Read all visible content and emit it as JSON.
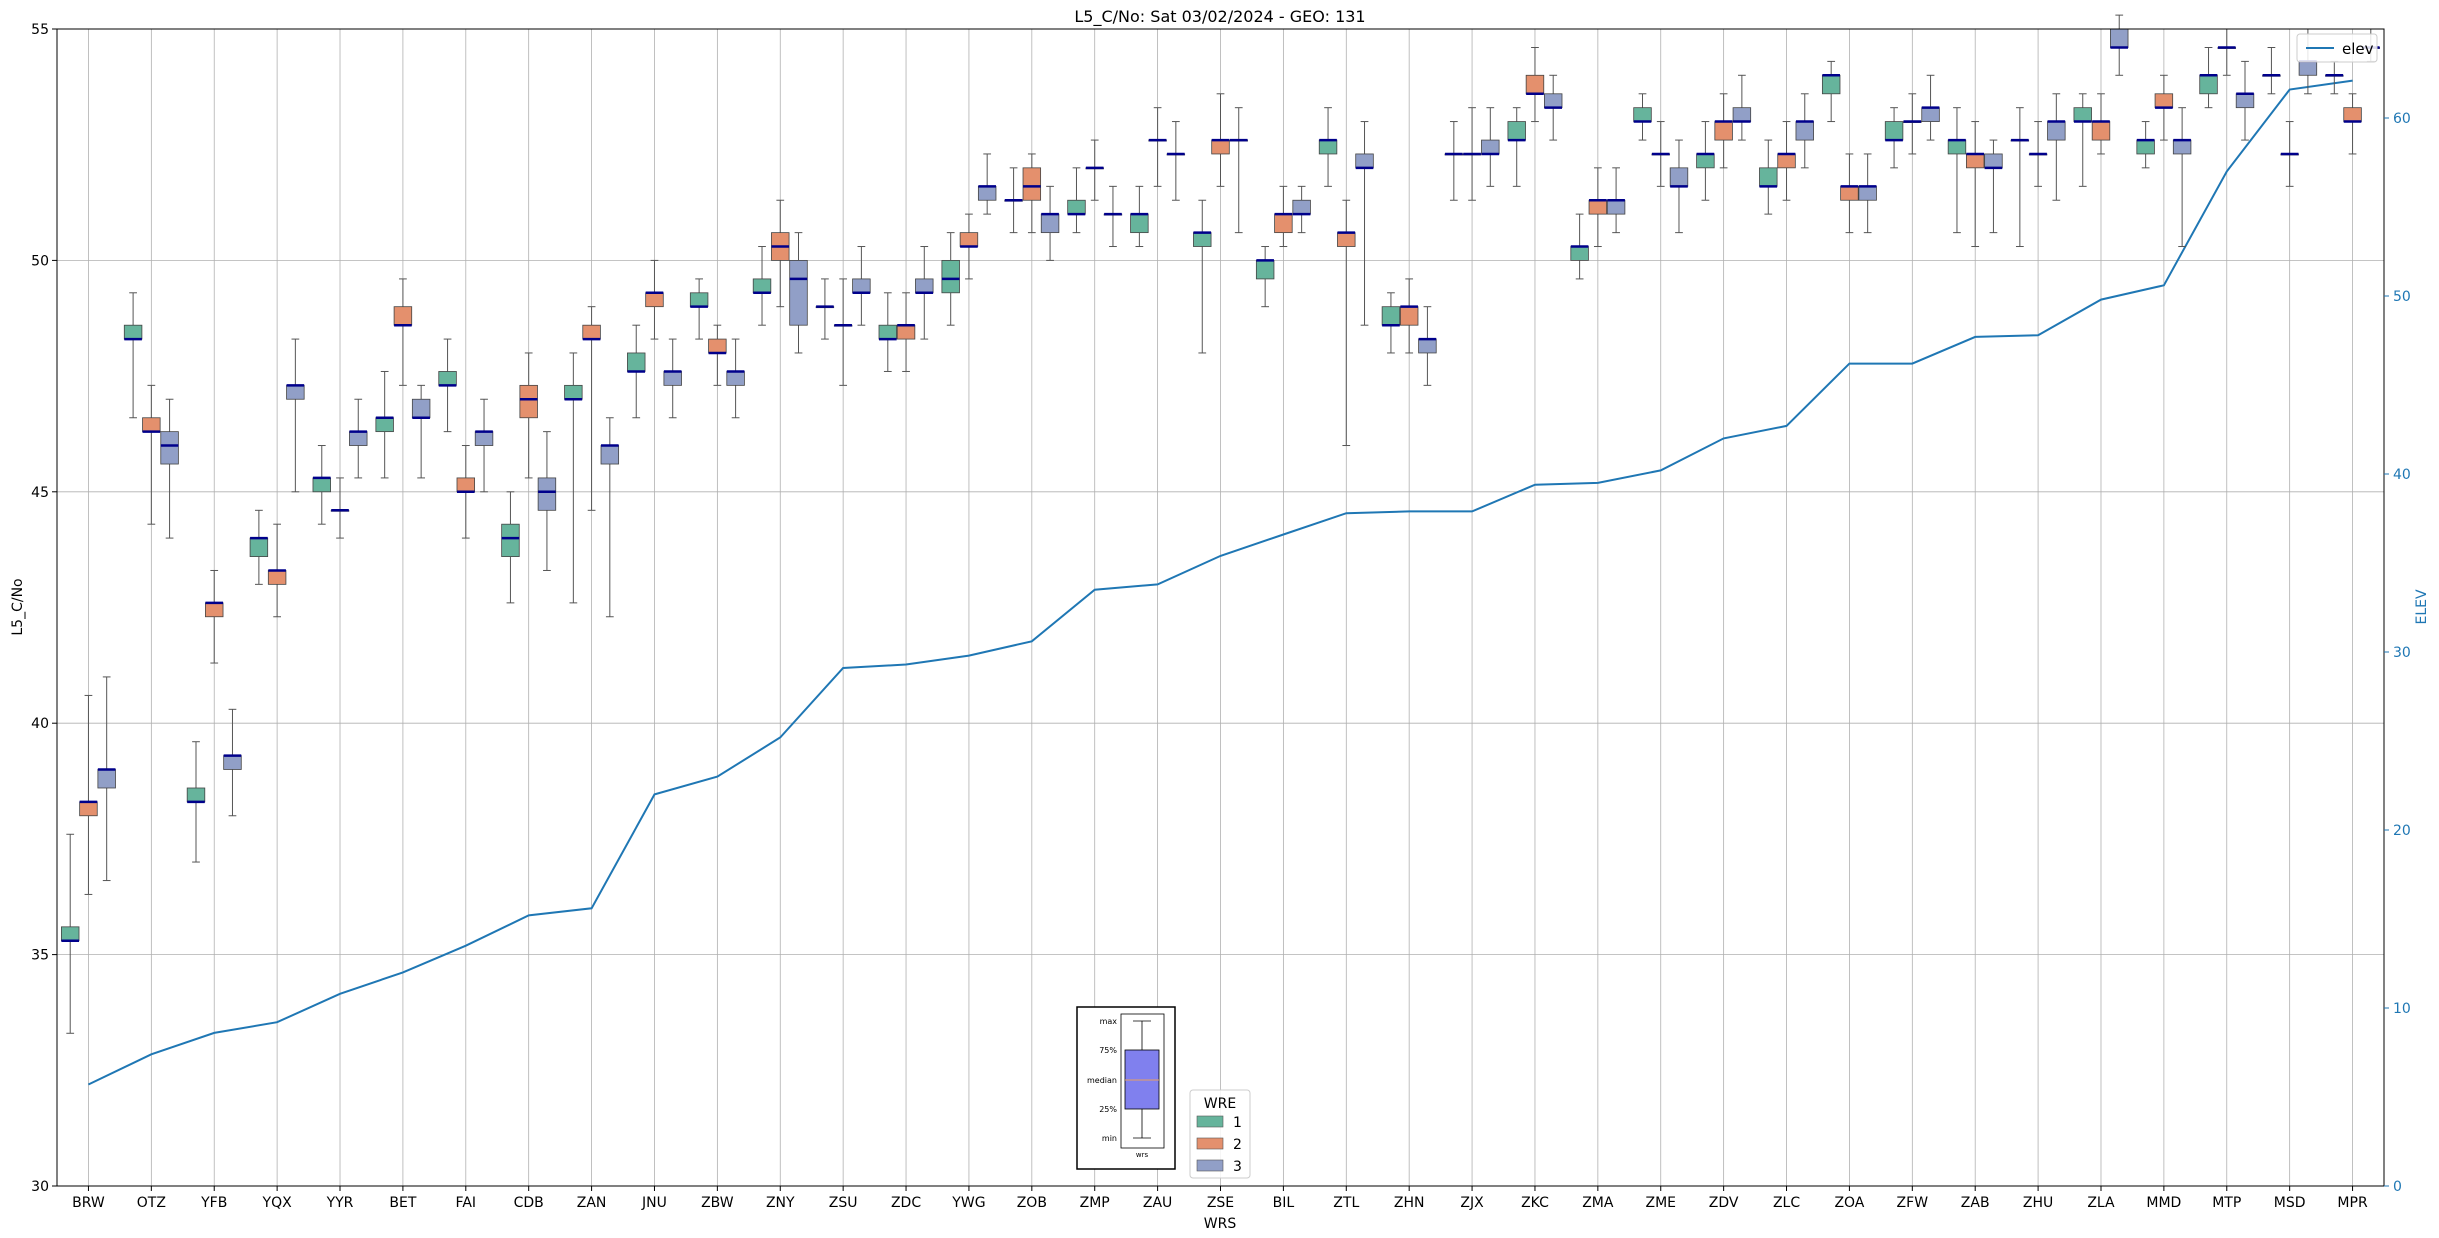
{
  "chart_data": {
    "type": "box",
    "title": "L5_C/No: Sat 03/02/2024 - GEO: 131",
    "xlabel": "WRS",
    "ylabel": "L5_C/No",
    "y2label": "ELEV",
    "ylim": [
      30,
      55
    ],
    "y2lim": [
      0,
      65
    ],
    "yticks": [
      "30",
      "35",
      "40",
      "45",
      "50",
      "55"
    ],
    "y2ticks": [
      "0",
      "10",
      "20",
      "30",
      "40",
      "50",
      "60"
    ],
    "grid": true,
    "categories": [
      "BRW",
      "OTZ",
      "YFB",
      "YQX",
      "YYR",
      "BET",
      "FAI",
      "CDB",
      "ZAN",
      "JNU",
      "ZBW",
      "ZNY",
      "ZSU",
      "ZDC",
      "YWG",
      "ZOB",
      "ZMP",
      "ZAU",
      "ZSE",
      "BIL",
      "ZTL",
      "ZHN",
      "ZJX",
      "ZKC",
      "ZMA",
      "ZME",
      "ZDV",
      "ZLC",
      "ZOA",
      "ZFW",
      "ZAB",
      "ZHU",
      "ZLA",
      "MMD",
      "MTP",
      "MSD",
      "MPR"
    ],
    "elev": [
      5.7,
      7.4,
      8.6,
      9.2,
      10.8,
      12.0,
      13.5,
      15.2,
      15.6,
      22.0,
      23.0,
      25.2,
      29.1,
      29.3,
      29.8,
      30.6,
      33.5,
      33.8,
      35.4,
      36.6,
      37.8,
      37.9,
      37.9,
      39.4,
      39.5,
      40.2,
      42.0,
      42.7,
      46.2,
      46.2,
      47.7,
      47.8,
      49.8,
      50.6,
      57.0,
      61.6,
      62.1
    ],
    "legend_line": "elev",
    "legend_title": "WRE",
    "wre_labels": [
      "1",
      "2",
      "3"
    ],
    "colors": {
      "wre1": "#66b49c",
      "wre2": "#e4906d",
      "wre3": "#919fc7",
      "elev": "#1f77b4",
      "median": "#00008b",
      "whisker": "#555555",
      "outlier_whisker": "#ff0000",
      "inset_box": "#8080ee",
      "inset_median": "#e8a060"
    },
    "inset_labels": [
      "max",
      "75%",
      "median",
      "25%",
      "min"
    ],
    "inset_xlabel": "wrs",
    "series": [
      {
        "wre": 1,
        "boxes": [
          [
            35.3,
            35.3,
            35.3,
            35.6,
            37.6,
            33.3
          ],
          [
            48.3,
            48.3,
            48.3,
            48.6,
            49.3,
            46.6
          ],
          [
            38.3,
            38.3,
            38.3,
            38.6,
            39.6,
            37.0
          ],
          [
            43.6,
            44.0,
            44.0,
            44.0,
            44.6,
            43.0
          ],
          [
            45.0,
            45.3,
            45.3,
            45.3,
            46.0,
            44.3
          ],
          [
            46.3,
            46.6,
            46.6,
            46.6,
            47.6,
            45.3
          ],
          [
            47.3,
            47.3,
            47.3,
            47.6,
            48.3,
            46.3
          ],
          [
            43.6,
            44.0,
            44.0,
            44.3,
            45.0,
            42.6
          ],
          [
            47.0,
            47.0,
            47.0,
            47.3,
            48.0,
            42.6
          ],
          [
            47.6,
            47.6,
            47.6,
            48.0,
            48.6,
            46.6
          ],
          [
            49.0,
            49.0,
            49.0,
            49.3,
            49.6,
            48.3
          ],
          [
            49.3,
            49.3,
            49.3,
            49.6,
            50.3,
            48.6
          ],
          [
            49.0,
            49.0,
            49.0,
            49.0,
            49.6,
            48.3
          ],
          [
            48.3,
            48.3,
            48.3,
            48.6,
            49.3,
            47.6
          ],
          [
            49.3,
            49.6,
            49.6,
            50.0,
            50.6,
            48.6
          ],
          [
            51.3,
            51.3,
            51.3,
            51.3,
            52.0,
            50.6
          ],
          [
            51.0,
            51.0,
            51.0,
            51.3,
            52.0,
            50.6
          ],
          [
            50.6,
            51.0,
            51.0,
            51.0,
            51.6,
            50.3
          ],
          [
            50.3,
            50.6,
            50.6,
            50.6,
            51.3,
            48.0
          ],
          [
            49.6,
            50.0,
            50.0,
            50.0,
            50.3,
            49.0
          ],
          [
            52.3,
            52.6,
            52.6,
            52.6,
            53.3,
            51.6
          ],
          [
            48.6,
            48.6,
            48.6,
            49.0,
            49.3,
            48.0
          ],
          [
            52.3,
            52.3,
            52.3,
            52.3,
            53.0,
            51.3
          ],
          [
            52.6,
            52.6,
            52.6,
            53.0,
            53.3,
            51.6
          ],
          [
            50.0,
            50.3,
            50.3,
            50.3,
            51.0,
            49.6
          ],
          [
            53.0,
            53.0,
            53.0,
            53.3,
            53.6,
            52.6
          ],
          [
            52.0,
            52.3,
            52.3,
            52.3,
            53.0,
            51.3
          ],
          [
            51.6,
            51.6,
            51.6,
            52.0,
            52.6,
            51.0
          ],
          [
            53.6,
            54.0,
            54.0,
            54.0,
            54.3,
            53.0
          ],
          [
            52.6,
            52.6,
            52.6,
            53.0,
            53.3,
            52.0
          ],
          [
            52.3,
            52.6,
            52.6,
            52.6,
            53.3,
            50.6
          ],
          [
            52.6,
            52.6,
            52.6,
            52.6,
            53.3,
            50.3
          ],
          [
            53.0,
            53.0,
            53.0,
            53.3,
            53.6,
            51.6
          ],
          [
            52.3,
            52.6,
            52.6,
            52.6,
            53.0,
            52.0
          ],
          [
            53.6,
            54.0,
            54.0,
            54.0,
            54.6,
            53.3
          ],
          [
            54.0,
            54.0,
            54.0,
            54.0,
            54.6,
            53.6
          ],
          [
            54.0,
            54.0,
            54.0,
            54.0,
            54.3,
            53.6
          ]
        ]
      },
      {
        "wre": 2,
        "boxes": [
          [
            38.0,
            38.3,
            38.3,
            38.3,
            40.6,
            36.3
          ],
          [
            46.3,
            46.3,
            46.3,
            46.6,
            47.3,
            44.3
          ],
          [
            42.3,
            42.6,
            42.6,
            42.6,
            43.3,
            41.3
          ],
          [
            43.0,
            43.3,
            43.3,
            43.3,
            44.3,
            42.3
          ],
          [
            44.6,
            44.6,
            44.6,
            44.6,
            45.3,
            44.0
          ],
          [
            48.6,
            48.6,
            48.6,
            49.0,
            49.6,
            47.3
          ],
          [
            45.0,
            45.0,
            45.0,
            45.3,
            46.0,
            44.0
          ],
          [
            46.6,
            47.0,
            47.0,
            47.3,
            48.0,
            45.3
          ],
          [
            48.3,
            48.3,
            48.3,
            48.6,
            49.0,
            44.6
          ],
          [
            49.0,
            49.3,
            49.3,
            49.3,
            50.0,
            48.3
          ],
          [
            48.0,
            48.0,
            48.0,
            48.3,
            48.6,
            47.3
          ],
          [
            50.0,
            50.3,
            50.3,
            50.6,
            51.3,
            49.0
          ],
          [
            48.6,
            48.6,
            48.6,
            48.6,
            49.6,
            47.3
          ],
          [
            48.3,
            48.6,
            48.6,
            48.6,
            49.3,
            47.6
          ],
          [
            50.3,
            50.3,
            50.3,
            50.6,
            51.0,
            49.6
          ],
          [
            51.3,
            51.6,
            51.6,
            52.0,
            52.3,
            50.6
          ],
          [
            52.0,
            52.0,
            52.0,
            52.0,
            52.6,
            51.3
          ],
          [
            52.6,
            52.6,
            52.6,
            52.6,
            53.3,
            51.6
          ],
          [
            52.3,
            52.6,
            52.6,
            52.6,
            53.6,
            51.6
          ],
          [
            50.6,
            51.0,
            51.0,
            51.0,
            51.6,
            50.3
          ],
          [
            50.3,
            50.6,
            50.6,
            50.6,
            51.3,
            46.0
          ],
          [
            48.6,
            49.0,
            49.0,
            49.0,
            49.6,
            48.0
          ],
          [
            52.3,
            52.3,
            52.3,
            52.3,
            53.3,
            51.3
          ],
          [
            53.6,
            53.6,
            53.6,
            54.0,
            54.6,
            53.0
          ],
          [
            51.0,
            51.3,
            51.3,
            51.3,
            52.0,
            50.3
          ],
          [
            52.3,
            52.3,
            52.3,
            52.3,
            53.0,
            51.6
          ],
          [
            52.6,
            53.0,
            53.0,
            53.0,
            53.6,
            52.0
          ],
          [
            52.0,
            52.3,
            52.3,
            52.3,
            53.0,
            51.3
          ],
          [
            51.3,
            51.6,
            51.6,
            51.6,
            52.3,
            50.6
          ],
          [
            53.0,
            53.0,
            53.0,
            53.0,
            53.6,
            52.3
          ],
          [
            52.0,
            52.3,
            52.3,
            52.3,
            53.0,
            50.3
          ],
          [
            52.3,
            52.3,
            52.3,
            52.3,
            53.0,
            51.6
          ],
          [
            52.6,
            53.0,
            53.0,
            53.0,
            53.6,
            52.3
          ],
          [
            53.3,
            53.3,
            53.3,
            53.6,
            54.0,
            52.6
          ],
          [
            54.6,
            54.6,
            54.6,
            54.6,
            55.0,
            54.0
          ],
          [
            52.3,
            52.3,
            52.3,
            52.3,
            53.0,
            51.6
          ],
          [
            53.0,
            53.0,
            53.0,
            53.3,
            53.6,
            52.3
          ]
        ]
      },
      {
        "wre": 3,
        "boxes": [
          [
            38.6,
            39.0,
            39.0,
            39.0,
            41.0,
            36.6
          ],
          [
            45.6,
            46.0,
            46.0,
            46.3,
            47.0,
            44.0
          ],
          [
            39.0,
            39.3,
            39.3,
            39.3,
            40.3,
            38.0
          ],
          [
            47.0,
            47.3,
            47.3,
            47.3,
            48.3,
            45.0
          ],
          [
            46.0,
            46.3,
            46.3,
            46.3,
            47.0,
            45.3
          ],
          [
            46.6,
            46.6,
            46.6,
            47.0,
            47.3,
            45.3
          ],
          [
            46.0,
            46.3,
            46.3,
            46.3,
            47.0,
            45.0
          ],
          [
            44.6,
            45.0,
            45.0,
            45.3,
            46.3,
            43.3
          ],
          [
            45.6,
            46.0,
            46.0,
            46.0,
            46.6,
            42.3
          ],
          [
            47.3,
            47.6,
            47.6,
            47.6,
            48.3,
            46.6
          ],
          [
            47.3,
            47.6,
            47.6,
            47.6,
            48.3,
            46.6
          ],
          [
            48.6,
            49.6,
            49.6,
            50.0,
            50.6,
            48.0
          ],
          [
            49.3,
            49.3,
            49.3,
            49.6,
            50.3,
            48.6
          ],
          [
            49.3,
            49.3,
            49.3,
            49.6,
            50.3,
            48.3
          ],
          [
            51.3,
            51.6,
            51.6,
            51.6,
            52.3,
            51.0
          ],
          [
            50.6,
            51.0,
            51.0,
            51.0,
            51.6,
            50.0
          ],
          [
            51.0,
            51.0,
            51.0,
            51.0,
            51.6,
            50.3
          ],
          [
            52.3,
            52.3,
            52.3,
            52.3,
            53.0,
            51.3
          ],
          [
            52.6,
            52.6,
            52.6,
            52.6,
            53.3,
            50.6
          ],
          [
            51.0,
            51.0,
            51.0,
            51.3,
            51.6,
            50.6
          ],
          [
            52.0,
            52.0,
            52.0,
            52.3,
            53.0,
            48.6
          ],
          [
            48.0,
            48.3,
            48.3,
            48.3,
            49.0,
            47.3
          ],
          [
            52.3,
            52.3,
            52.3,
            52.6,
            53.3,
            51.6
          ],
          [
            53.3,
            53.3,
            53.3,
            53.6,
            54.0,
            52.6
          ],
          [
            51.0,
            51.3,
            51.3,
            51.3,
            52.0,
            50.6
          ],
          [
            51.6,
            51.6,
            51.6,
            52.0,
            52.6,
            50.6
          ],
          [
            53.0,
            53.0,
            53.0,
            53.3,
            54.0,
            52.6
          ],
          [
            52.6,
            53.0,
            53.0,
            53.0,
            53.6,
            52.0
          ],
          [
            51.3,
            51.6,
            51.6,
            51.6,
            52.3,
            50.6
          ],
          [
            53.0,
            53.3,
            53.3,
            53.3,
            54.0,
            52.6
          ],
          [
            52.0,
            52.0,
            52.0,
            52.3,
            52.6,
            50.6
          ],
          [
            52.6,
            53.0,
            53.0,
            53.0,
            53.6,
            51.3
          ],
          [
            54.6,
            54.6,
            54.6,
            55.0,
            55.3,
            54.0
          ],
          [
            52.3,
            52.6,
            52.6,
            52.6,
            53.3,
            50.3
          ],
          [
            53.3,
            53.6,
            53.6,
            53.6,
            54.3,
            52.6
          ],
          [
            54.0,
            54.3,
            54.3,
            54.3,
            55.0,
            53.6
          ],
          [
            54.6,
            54.6,
            54.6,
            54.6,
            55.0,
            54.3
          ]
        ]
      }
    ]
  }
}
